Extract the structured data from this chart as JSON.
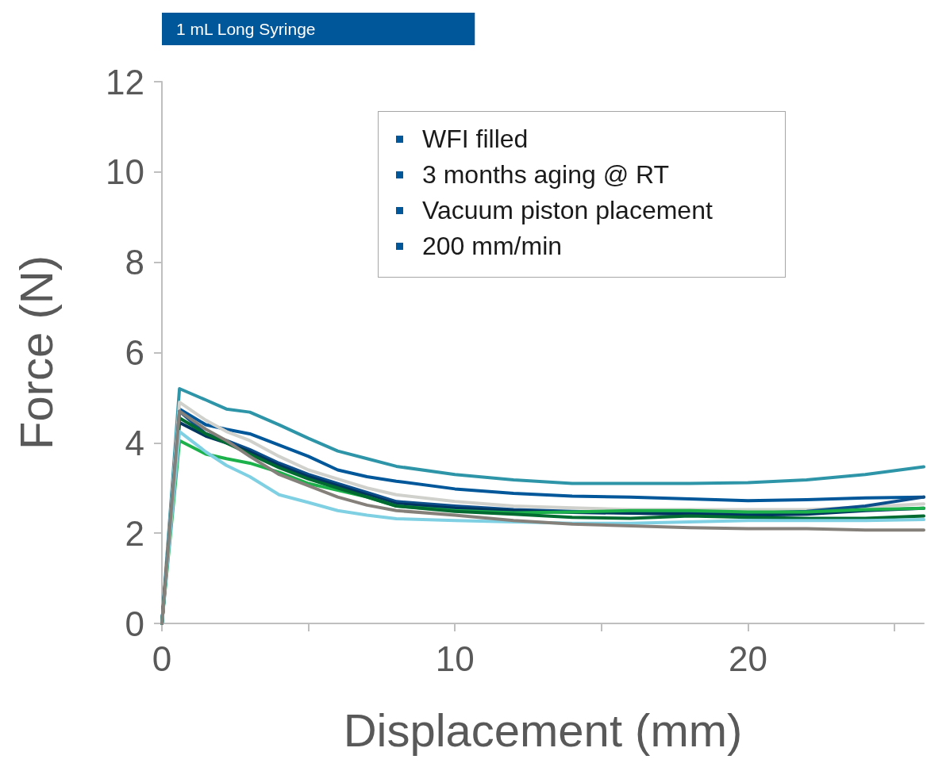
{
  "chart_data": {
    "type": "line",
    "title": "1 mL Long Syringe",
    "xlabel": "Displacement (mm)",
    "ylabel": "Force (N)",
    "annotations": [
      "WFI filled",
      "3 months aging @ RT",
      "Vacuum piston placement",
      "200 mm/min"
    ],
    "x": [
      0,
      0.6,
      1.5,
      2.2,
      3,
      4,
      5,
      6,
      7,
      8,
      10,
      12,
      14,
      16,
      18,
      20,
      22,
      24,
      26
    ],
    "series": [
      {
        "color": "#2e95a8",
        "values": [
          0,
          5.2,
          4.95,
          4.75,
          4.68,
          4.4,
          4.1,
          3.82,
          3.65,
          3.48,
          3.3,
          3.18,
          3.1,
          3.1,
          3.1,
          3.12,
          3.18,
          3.3,
          3.47
        ]
      },
      {
        "color": "#00579a",
        "values": [
          0,
          4.75,
          4.4,
          4.3,
          4.2,
          3.95,
          3.7,
          3.4,
          3.25,
          3.15,
          2.98,
          2.88,
          2.82,
          2.8,
          2.76,
          2.72,
          2.74,
          2.78,
          2.8
        ]
      },
      {
        "color": "#d0d0cc",
        "values": [
          0,
          4.9,
          4.5,
          4.25,
          4.05,
          3.7,
          3.4,
          3.2,
          3.0,
          2.85,
          2.7,
          2.6,
          2.56,
          2.52,
          2.52,
          2.52,
          2.52,
          2.58,
          2.65
        ]
      },
      {
        "color": "#0d4f8b",
        "values": [
          0,
          4.7,
          4.2,
          4.05,
          3.85,
          3.55,
          3.3,
          3.1,
          2.9,
          2.7,
          2.6,
          2.52,
          2.48,
          2.45,
          2.44,
          2.44,
          2.48,
          2.6,
          2.8
        ]
      },
      {
        "color": "#003560",
        "values": [
          0,
          4.45,
          4.15,
          4.0,
          3.8,
          3.5,
          3.25,
          3.05,
          2.85,
          2.65,
          2.55,
          2.5,
          2.46,
          2.44,
          2.42,
          2.4,
          2.42,
          2.5,
          2.55
        ]
      },
      {
        "color": "#1db14b",
        "values": [
          0,
          4.05,
          3.75,
          3.65,
          3.55,
          3.35,
          3.1,
          2.95,
          2.8,
          2.6,
          2.5,
          2.45,
          2.47,
          2.5,
          2.5,
          2.47,
          2.47,
          2.52,
          2.55
        ]
      },
      {
        "color": "#006b30",
        "values": [
          0,
          4.55,
          4.2,
          4.0,
          3.75,
          3.45,
          3.2,
          3.0,
          2.8,
          2.6,
          2.48,
          2.42,
          2.35,
          2.33,
          2.38,
          2.35,
          2.33,
          2.33,
          2.38
        ]
      },
      {
        "color": "#7fd0e2",
        "values": [
          0,
          4.25,
          3.8,
          3.5,
          3.25,
          2.85,
          2.68,
          2.5,
          2.4,
          2.32,
          2.28,
          2.25,
          2.22,
          2.22,
          2.25,
          2.28,
          2.28,
          2.28,
          2.3
        ]
      },
      {
        "color": "#85807a",
        "values": [
          0,
          4.7,
          4.3,
          4.05,
          3.7,
          3.3,
          3.05,
          2.8,
          2.62,
          2.5,
          2.4,
          2.28,
          2.2,
          2.16,
          2.12,
          2.1,
          2.1,
          2.07,
          2.07
        ]
      }
    ],
    "xlim": [
      0,
      26
    ],
    "xticks": [
      0,
      {
        "value": 5,
        "label": null
      },
      10,
      {
        "value": 15,
        "label": null
      },
      20,
      {
        "value": 25,
        "label": null
      }
    ],
    "ylim": [
      0,
      12
    ],
    "yticks": [
      0,
      2,
      4,
      6,
      8,
      10,
      12
    ],
    "grid": false,
    "marker": "none",
    "line_style": "solid"
  }
}
